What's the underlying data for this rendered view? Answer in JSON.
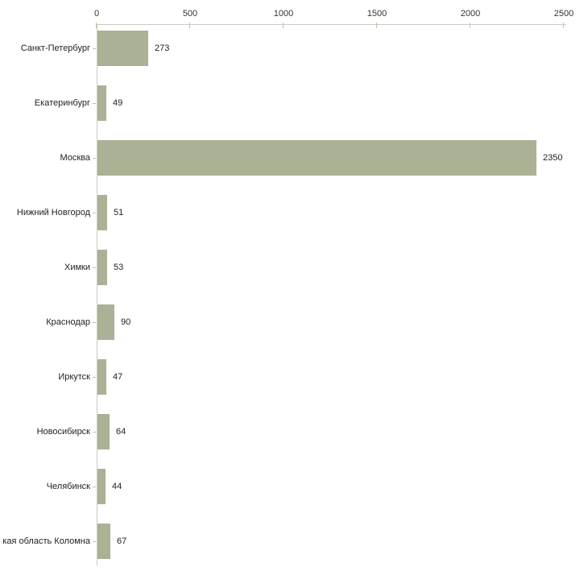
{
  "chart_data": {
    "type": "bar",
    "orientation": "horizontal",
    "title": "",
    "xlabel": "",
    "ylabel": "",
    "categories": [
      "Санкт-Петербург",
      "Екатеринбург",
      "Москва",
      "Нижний Новгород",
      "Химки",
      "Краснодар",
      "Иркутск",
      "Новосибирск",
      "Челябинск",
      "кая область Коломна"
    ],
    "values": [
      273,
      49,
      2350,
      51,
      53,
      90,
      47,
      64,
      44,
      67
    ],
    "value_labels": [
      "273",
      "49",
      "2350",
      "51",
      "53",
      "90",
      "47",
      "64",
      "44",
      "67"
    ],
    "x_axis": {
      "position": "top",
      "min": 0,
      "max": 2500,
      "ticks": [
        0,
        500,
        1000,
        1500,
        2000,
        2500
      ],
      "tick_labels": [
        "0",
        "500",
        "1000",
        "1500",
        "2000",
        "2500"
      ]
    },
    "grid": false,
    "legend": false,
    "colors": {
      "bar_fill": "#abb194",
      "axis_line": "#c9c9c4",
      "tick_mark": "#c3c39b",
      "text": "#222222",
      "background": "#ffffff"
    }
  }
}
